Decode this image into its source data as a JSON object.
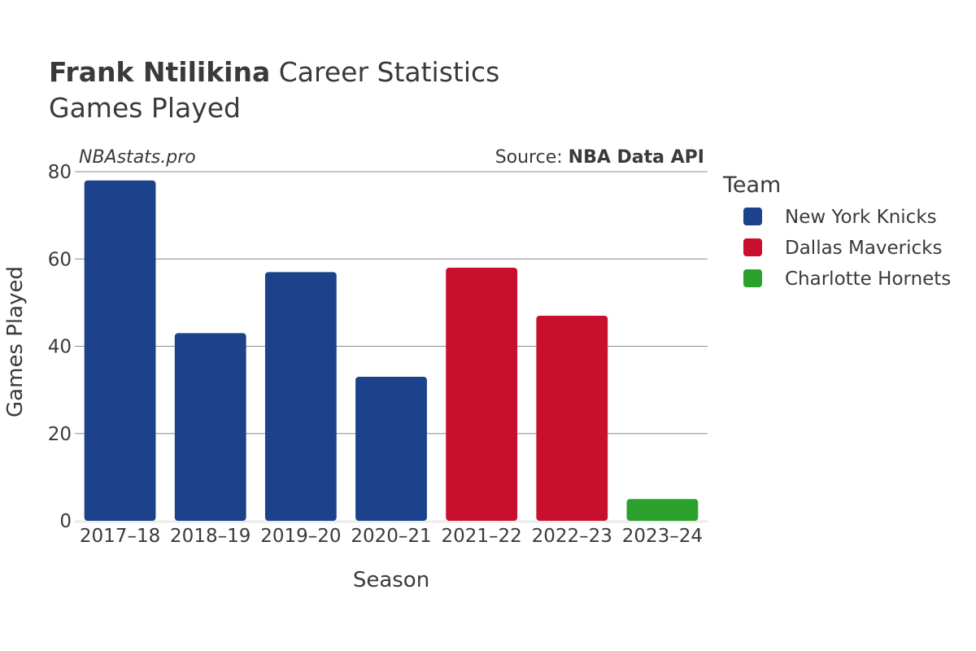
{
  "title": {
    "player": "Frank Ntilikina",
    "suffix": " Career Statistics",
    "subtitle": "Games Played"
  },
  "watermark": "NBAstats.pro",
  "source": {
    "prefix": "Source: ",
    "name": "NBA Data API"
  },
  "legend": {
    "title": "Team",
    "items": [
      {
        "label": "New York Knicks",
        "color": "#1b428a"
      },
      {
        "label": "Dallas Mavericks",
        "color": "#c8102e"
      },
      {
        "label": "Charlotte Hornets",
        "color": "#2ca02c"
      }
    ]
  },
  "chart_data": {
    "type": "bar",
    "categories": [
      "2017–18",
      "2018–19",
      "2019–20",
      "2020–21",
      "2021–22",
      "2022–23",
      "2023–24"
    ],
    "values": [
      78,
      43,
      57,
      33,
      58,
      47,
      5
    ],
    "teams": [
      "New York Knicks",
      "New York Knicks",
      "New York Knicks",
      "New York Knicks",
      "Dallas Mavericks",
      "Dallas Mavericks",
      "Charlotte Hornets"
    ],
    "xlabel": "Season",
    "ylabel": "Games Played",
    "ylim": [
      0,
      80
    ],
    "yticks": [
      0,
      20,
      40,
      60,
      80
    ],
    "grid": true,
    "legend_position": "right"
  }
}
